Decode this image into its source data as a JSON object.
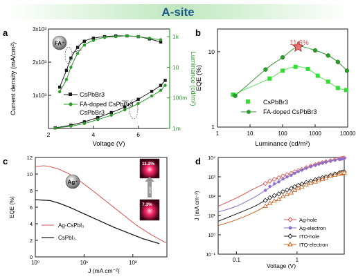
{
  "banner": {
    "title": "A-site"
  },
  "colors": {
    "black": "#1a1a1a",
    "green": "#2e9a2e",
    "lightgreen": "#33dd33",
    "red": "#d9534f",
    "purple": "#8a6fcf",
    "orange": "#c8601a",
    "banner_text": "#1a5a8a",
    "banner_bg": "#c9ecc9"
  },
  "panels": {
    "a": {
      "letter": "a",
      "badge": "FA⁺",
      "chart_data": {
        "type": "line",
        "xlabel": "Voltage (V)",
        "ylabel_left": "Current density (mA/cm²)",
        "ylabel_right": "Luminance (cd/m²)",
        "xlim": [
          2,
          7.4
        ],
        "x_ticks": [
          "2",
          "4",
          "6"
        ],
        "y_left_ticks": [
          "1x10³",
          "2x10³",
          "3x10³"
        ],
        "y_right_ticks": [
          "1m",
          "100m",
          "10",
          "1k"
        ],
        "legend": [
          "CsPbBr3",
          "FA-doped CsPbBr3"
        ],
        "series": [
          {
            "name": "CsPbBr3",
            "axis": "left",
            "x": [
              2.3,
              3.0,
              3.6,
              4.2,
              4.8,
              5.4,
              6.0,
              6.6,
              7.0,
              7.2
            ],
            "values": [
              0.02,
              0.1,
              0.2,
              0.33,
              0.48,
              0.65,
              0.88,
              1.12,
              1.3,
              1.45
            ]
          },
          {
            "name": "FA-doped CsPbBr3",
            "axis": "left",
            "x": [
              2.3,
              3.0,
              3.6,
              4.2,
              4.8,
              5.4,
              6.0,
              6.6,
              7.0,
              7.2
            ],
            "values": [
              0.01,
              0.07,
              0.15,
              0.27,
              0.4,
              0.56,
              0.75,
              0.98,
              1.15,
              1.3
            ]
          },
          {
            "name": "CsPbBr3",
            "axis": "right",
            "x": [
              2.5,
              2.8,
              3.0,
              3.3,
              3.6,
              4.0,
              4.5,
              5.0,
              5.5,
              6.0,
              6.5,
              7.0
            ],
            "values": [
              -0.3,
              0.8,
              1.6,
              2.3,
              2.7,
              2.9,
              3.0,
              3.05,
              3.05,
              3.0,
              2.85,
              2.65
            ]
          },
          {
            "name": "FA-doped CsPbBr3",
            "axis": "right",
            "x": [
              2.5,
              2.8,
              3.0,
              3.3,
              3.6,
              4.0,
              4.5,
              5.0,
              5.5,
              6.0,
              6.5,
              7.0
            ],
            "values": [
              -0.6,
              0.2,
              1.0,
              1.9,
              2.45,
              2.75,
              2.95,
              3.0,
              3.05,
              3.0,
              2.9,
              2.8
            ]
          }
        ]
      }
    },
    "b": {
      "letter": "b",
      "annotation": "11.6%",
      "chart_data": {
        "type": "scatter",
        "xlabel": "Luminance (cd/m²)",
        "ylabel": "EQE (%)",
        "xscale": "log",
        "yscale": "log",
        "xlim": [
          1,
          10000
        ],
        "ylim": [
          1,
          20
        ],
        "x_ticks": [
          "1",
          "10",
          "100",
          "1000",
          "10000"
        ],
        "y_ticks": [
          "1",
          "10"
        ],
        "legend": [
          "CsPbBr3",
          "FA-doped CsPbBr3"
        ],
        "series": [
          {
            "name": "CsPbBr3",
            "x": [
              3,
              40,
              100,
              250,
              600,
              1200,
              2500,
              5000,
              9000
            ],
            "values": [
              2.7,
              4.4,
              5.6,
              6.3,
              5.9,
              4.8,
              4.0,
              3.3,
              3.1
            ]
          },
          {
            "name": "FA-doped CsPbBr3",
            "x": [
              3.5,
              30,
              100,
              300,
              1000,
              2500,
              5000,
              9500
            ],
            "values": [
              2.6,
              5.8,
              8.4,
              11.6,
              10.4,
              8.9,
              7.3,
              5.6
            ]
          }
        ]
      }
    },
    "c": {
      "letter": "c",
      "badge": "Ag⁺",
      "inset_top": "11.2%",
      "inset_bottom": "7.3%",
      "inset_arrow": "EQE",
      "chart_data": {
        "type": "line",
        "xlabel": "J (mA cm⁻²)",
        "ylabel": "EQE (%)",
        "xscale": "log",
        "xlim": [
          1,
          500
        ],
        "ylim": [
          0,
          12
        ],
        "x_ticks": [
          "10⁰",
          "10¹",
          "10²"
        ],
        "y_ticks": [
          "0",
          "2",
          "4",
          "6",
          "8",
          "10",
          "12"
        ],
        "legend": [
          "Ag-CsPbI₃",
          "CsPbI₃"
        ],
        "series": [
          {
            "name": "Ag-CsPbI₃",
            "x": [
              1,
              1.5,
              2,
              3,
              5,
              8,
              15,
              30,
              60,
              120,
              250,
              480
            ],
            "values": [
              10.9,
              11.0,
              10.9,
              10.6,
              10.0,
              9.2,
              8.0,
              6.6,
              5.2,
              3.8,
              2.6,
              1.7
            ]
          },
          {
            "name": "CsPbI₃",
            "x": [
              1,
              2,
              3,
              5,
              10,
              20,
              40,
              80,
              160,
              350
            ],
            "values": [
              6.9,
              6.8,
              6.5,
              6.0,
              5.2,
              4.4,
              3.6,
              2.9,
              2.2,
              1.6
            ]
          }
        ]
      }
    },
    "d": {
      "letter": "d",
      "chart_data": {
        "type": "line",
        "xlabel": "Voltage (V)",
        "ylabel": "J (mA cm⁻²)",
        "xscale": "log",
        "yscale": "log",
        "xlim": [
          0.05,
          6
        ],
        "ylim": [
          0.1,
          10000
        ],
        "x_ticks": [
          "0.1",
          "1"
        ],
        "y_ticks": [
          "10⁻¹",
          "10⁰",
          "10¹",
          "10²",
          "10³",
          "10⁴"
        ],
        "legend": [
          "Ag-hole",
          "Ag-electron",
          "ITO-hole",
          "ITO-electron"
        ],
        "series": [
          {
            "name": "Ag-hole",
            "x": [
              0.05,
              0.1,
              0.2,
              0.3,
              0.5,
              0.8,
              1.2,
              2,
              3,
              5,
              6
            ],
            "values": [
              30,
              80,
              250,
              450,
              900,
              1500,
              2400,
              4200,
              6000,
              8500,
              9500
            ]
          },
          {
            "name": "Ag-electron",
            "x": [
              0.05,
              0.1,
              0.2,
              0.3,
              0.5,
              0.8,
              1.2,
              2,
              3,
              5,
              6
            ],
            "values": [
              15,
              30,
              90,
              200,
              550,
              1200,
              2200,
              4000,
              5800,
              8000,
              9000
            ]
          },
          {
            "name": "ITO-hole",
            "x": [
              0.05,
              0.1,
              0.2,
              0.3,
              0.5,
              0.8,
              1.2,
              2,
              3,
              5,
              6
            ],
            "values": [
              5,
              12,
              30,
              60,
              130,
              250,
              420,
              700,
              1000,
              1600,
              1800
            ]
          },
          {
            "name": "ITO-electron",
            "x": [
              0.05,
              0.1,
              0.2,
              0.3,
              0.5,
              0.8,
              1.2,
              2,
              3,
              5,
              6
            ],
            "values": [
              3,
              6,
              15,
              30,
              70,
              150,
              300,
              550,
              850,
              1400,
              1600
            ]
          }
        ]
      }
    }
  }
}
